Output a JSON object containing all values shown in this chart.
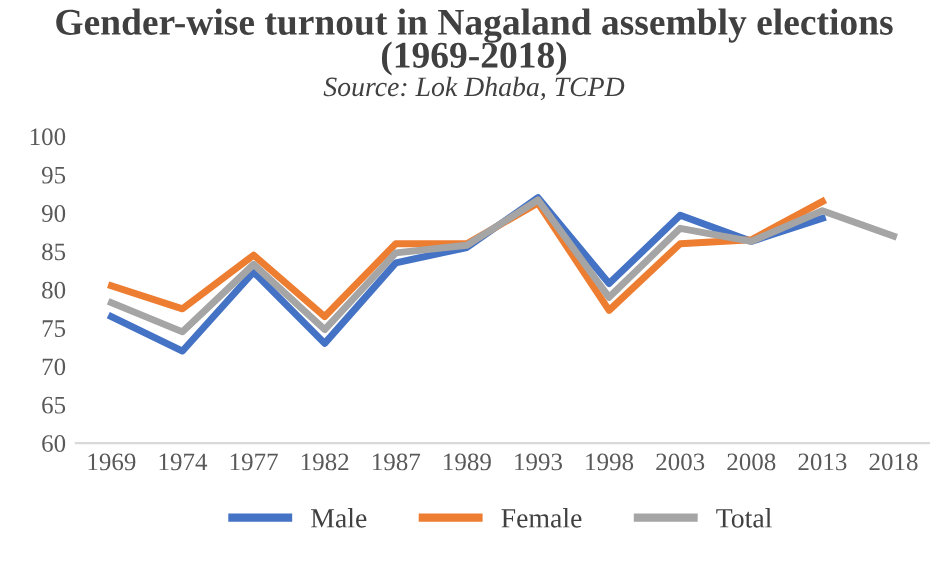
{
  "chart_data": {
    "type": "line",
    "title": "Gender-wise turnout in Nagaland assembly elections (1969-2018)",
    "subtitle": "Source: Lok Dhaba, TCPD",
    "categories": [
      "1969",
      "1974",
      "1977",
      "1982",
      "1987",
      "1989",
      "1993",
      "1998",
      "2003",
      "2008",
      "2013",
      "2018"
    ],
    "series": [
      {
        "name": "Male",
        "color": "#4472c4",
        "values": [
          76.5,
          72,
          82.3,
          73,
          83.5,
          85.5,
          92,
          80.8,
          89.7,
          86.3,
          89.3,
          null
        ]
      },
      {
        "name": "Female",
        "color": "#ed7d31",
        "values": [
          80.5,
          77.5,
          84.5,
          76.5,
          86,
          86,
          91.3,
          77.3,
          86,
          86.5,
          91.5,
          null
        ]
      },
      {
        "name": "Total",
        "color": "#a5a5a5",
        "values": [
          78.3,
          74.5,
          83.3,
          74.8,
          84.8,
          85.8,
          91.7,
          79,
          88,
          86.3,
          90.3,
          87
        ]
      }
    ],
    "ylim": [
      60,
      100
    ],
    "yticks": [
      60,
      65,
      70,
      75,
      80,
      85,
      90,
      95,
      100
    ],
    "grid": false,
    "legend": "bottom",
    "marker": "none",
    "line_style": "solid"
  }
}
